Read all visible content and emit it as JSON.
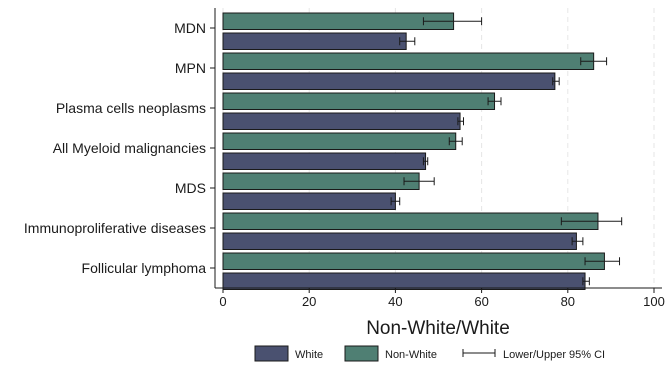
{
  "chart_data": {
    "type": "bar",
    "orientation": "horizontal",
    "title": "",
    "xlabel": "Non-White/White",
    "ylabel": "",
    "xlim": [
      0,
      100
    ],
    "x_ticks": [
      0,
      20,
      40,
      60,
      80,
      100
    ],
    "grid": true,
    "legend_position": "bottom",
    "categories": [
      "MDN",
      "MPN",
      "Plasma cells neoplasms",
      "All Myeloid malignancies",
      "MDS",
      "Immunoproliferative diseases",
      "Follicular lymphoma"
    ],
    "series": [
      {
        "name": "White",
        "color": "#4a5170",
        "values": [
          42.5,
          77.0,
          55.0,
          47.0,
          40.0,
          82.0,
          84.0
        ],
        "ci_lower": [
          41.0,
          76.5,
          54.5,
          46.5,
          39.0,
          81.0,
          83.5
        ],
        "ci_upper": [
          44.5,
          78.0,
          55.8,
          47.5,
          41.0,
          83.5,
          85.0
        ]
      },
      {
        "name": "Non-White",
        "color": "#4f7f73",
        "values": [
          53.5,
          86.0,
          63.0,
          54.0,
          45.5,
          87.0,
          88.5
        ],
        "ci_lower": [
          46.5,
          83.0,
          61.5,
          52.5,
          42.0,
          78.5,
          84.0
        ],
        "ci_upper": [
          60.0,
          89.0,
          64.5,
          55.5,
          49.0,
          92.5,
          92.0
        ]
      }
    ],
    "legend": [
      {
        "label": "White",
        "kind": "box",
        "color": "#4a5170"
      },
      {
        "label": "Non-White",
        "kind": "box",
        "color": "#4f7f73"
      },
      {
        "label": "Lower/Upper 95% CI",
        "kind": "errorbar",
        "color": "#1a1a1a"
      }
    ]
  }
}
